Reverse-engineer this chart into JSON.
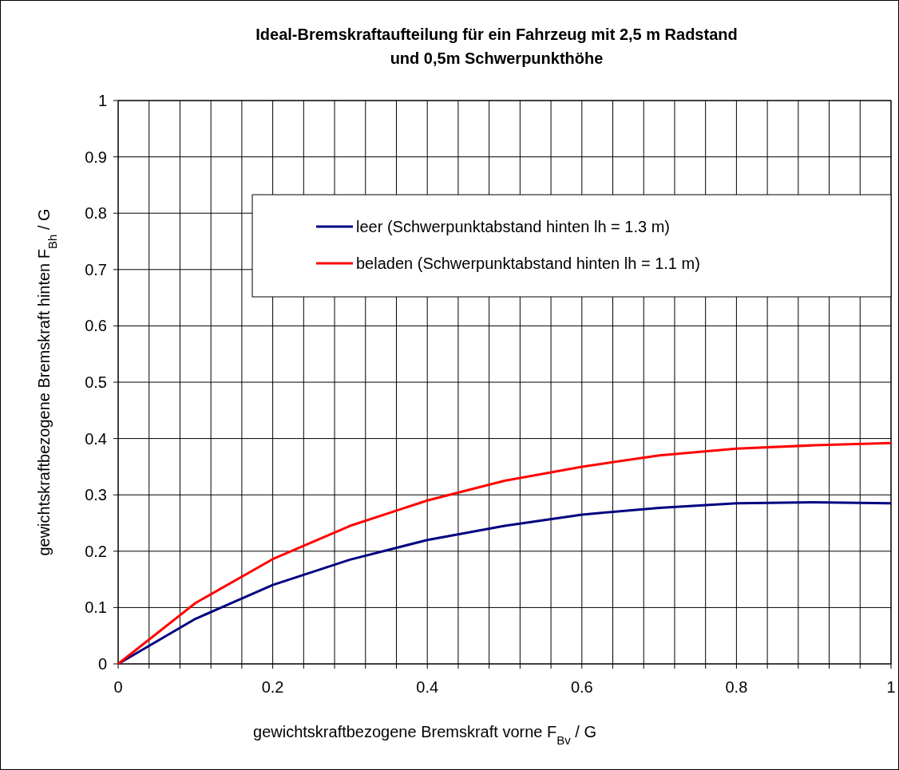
{
  "chart_data": {
    "type": "line",
    "title": "Ideal-Bremskraftaufteilung für ein Fahrzeug mit 2,5 m Radstand\nund 0,5m Schwerpunkthöhe",
    "xlabel": "gewichtskraftbezogene Bremskraft vorne F$_{Bv}$ / G",
    "ylabel": "gewichtskraftbezogene Bremskraft hinten F$_{Bh}$ / G",
    "x": [
      0,
      0.1,
      0.2,
      0.3,
      0.4,
      0.5,
      0.6,
      0.7,
      0.8,
      0.9,
      1
    ],
    "series": [
      {
        "name": "leer (Schwerpunktabstand hinten lh = 1.3 m)",
        "color": "#000080",
        "values": [
          0,
          0.08,
          0.14,
          0.185,
          0.22,
          0.245,
          0.265,
          0.277,
          0.285,
          0.287,
          0.285
        ]
      },
      {
        "name": "beladen (Schwerpunktabstand hinten lh = 1.1 m)",
        "color": "#ff0000",
        "values": [
          0,
          0.108,
          0.186,
          0.245,
          0.29,
          0.325,
          0.35,
          0.37,
          0.382,
          0.388,
          0.392
        ]
      }
    ],
    "xlim": [
      0,
      1
    ],
    "ylim": [
      0,
      1
    ],
    "xticks": [
      0,
      {
        "value": 0.04,
        "label": null
      },
      {
        "value": 0.08,
        "label": null
      },
      {
        "value": 0.12,
        "label": null
      },
      {
        "value": 0.16,
        "label": null
      },
      0.2,
      {
        "value": 0.24,
        "label": null
      },
      {
        "value": 0.28,
        "label": null
      },
      {
        "value": 0.32,
        "label": null
      },
      {
        "value": 0.36,
        "label": null
      },
      0.4,
      {
        "value": 0.44,
        "label": null
      },
      {
        "value": 0.48,
        "label": null
      },
      {
        "value": 0.52,
        "label": null
      },
      {
        "value": 0.56,
        "label": null
      },
      0.6,
      {
        "value": 0.64,
        "label": null
      },
      {
        "value": 0.68,
        "label": null
      },
      {
        "value": 0.72,
        "label": null
      },
      {
        "value": 0.76,
        "label": null
      },
      0.8,
      {
        "value": 0.84,
        "label": null
      },
      {
        "value": 0.88,
        "label": null
      },
      {
        "value": 0.92,
        "label": null
      },
      {
        "value": 0.96,
        "label": null
      },
      1
    ],
    "yticks": [
      0,
      0.1,
      0.2,
      0.3,
      0.4,
      0.5,
      0.6,
      0.7,
      0.8,
      0.9,
      1
    ],
    "grid": true,
    "legend": "top right",
    "marker": "none",
    "line_style": "solid"
  }
}
